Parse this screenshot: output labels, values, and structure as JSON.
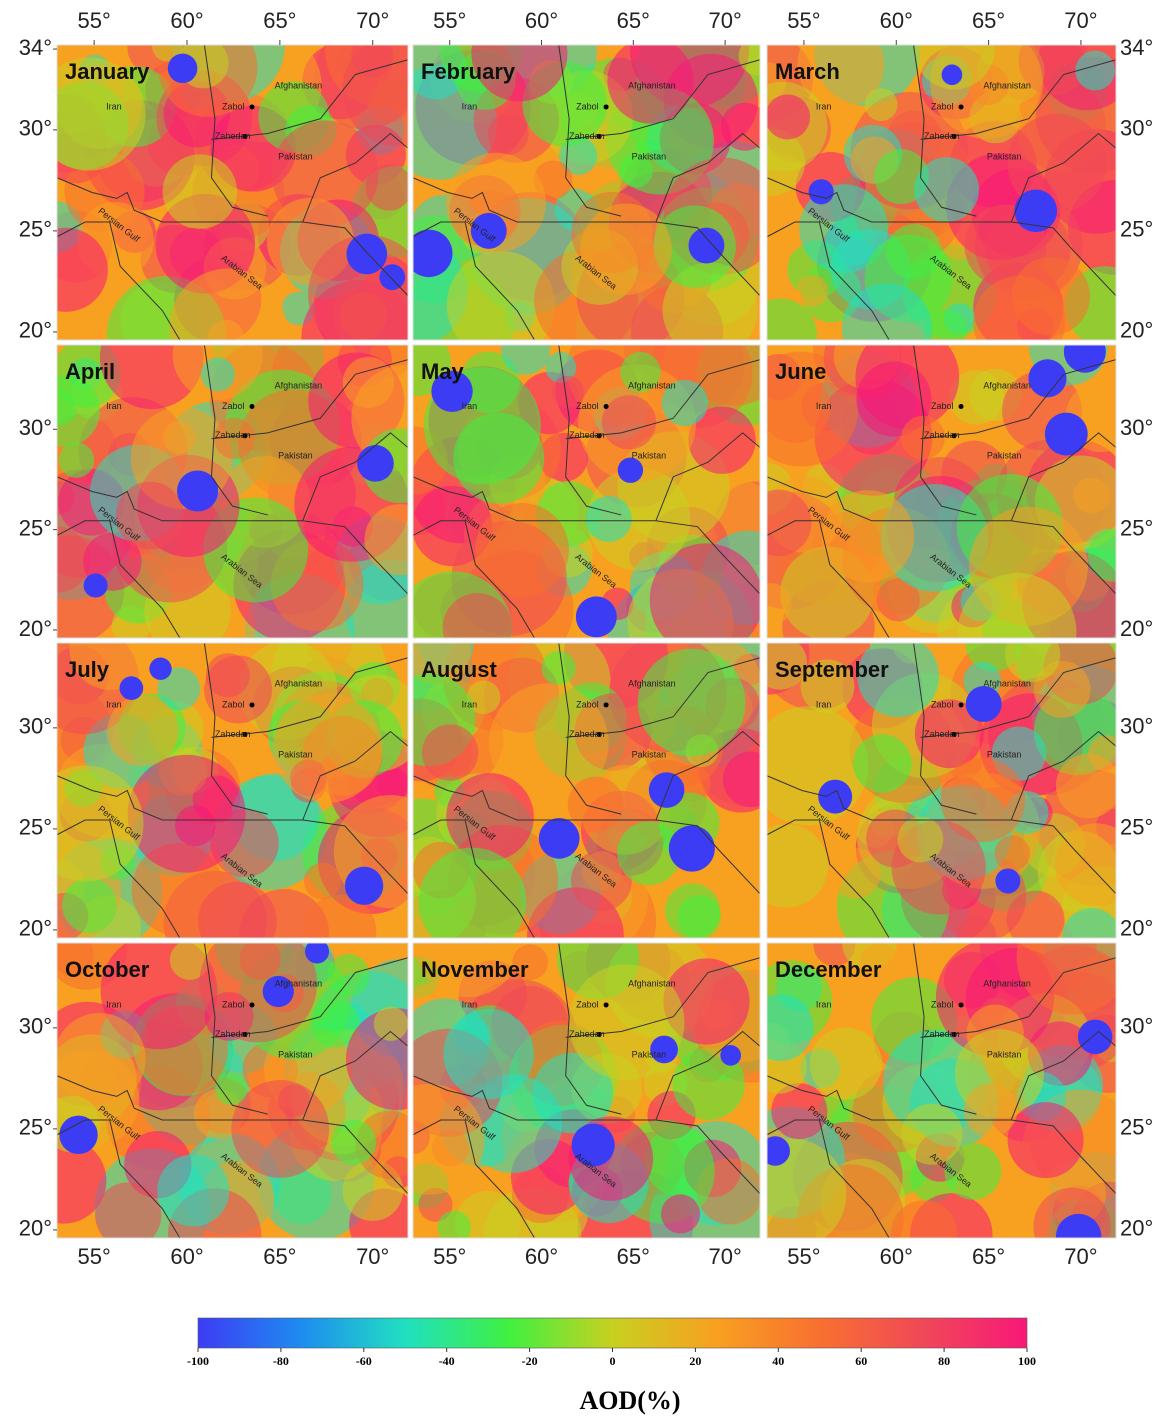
{
  "panels": [
    {
      "month": "January"
    },
    {
      "month": "February"
    },
    {
      "month": "March"
    },
    {
      "month": "April"
    },
    {
      "month": "May"
    },
    {
      "month": "June"
    },
    {
      "month": "July"
    },
    {
      "month": "August"
    },
    {
      "month": "September"
    },
    {
      "month": "October"
    },
    {
      "month": "November"
    },
    {
      "month": "December"
    }
  ],
  "place_labels": [
    "Iran",
    "Zabol",
    "Zahedan",
    "Afghanistan",
    "Pakistan",
    "Persian Gulf",
    "Arabian Sea"
  ],
  "lonlim": [
    53,
    71.9
  ],
  "latlim": [
    19.6,
    34.2
  ],
  "lon_ticks": [
    {
      "value": 55,
      "label": "55°"
    },
    {
      "value": 60,
      "label": "60°"
    },
    {
      "value": 65,
      "label": "65°"
    },
    {
      "value": 70,
      "label": "70°"
    }
  ],
  "lat_ticks": [
    {
      "value": 34,
      "label": "34°"
    },
    {
      "value": 30,
      "label": "30°"
    },
    {
      "value": 25,
      "label": "25°"
    },
    {
      "value": 20,
      "label": "20°"
    }
  ],
  "colorbar": {
    "label": "AOD(%)",
    "lim": [
      -100,
      100
    ],
    "ticks": [
      -100,
      -80,
      -60,
      -40,
      -20,
      0,
      20,
      40,
      60,
      80,
      100
    ],
    "colors": [
      "#3d3cf5",
      "#1e8cf0",
      "#20e0c0",
      "#40f040",
      "#c8d020",
      "#f8a020",
      "#f87030",
      "#f04858",
      "#f81878"
    ]
  }
}
